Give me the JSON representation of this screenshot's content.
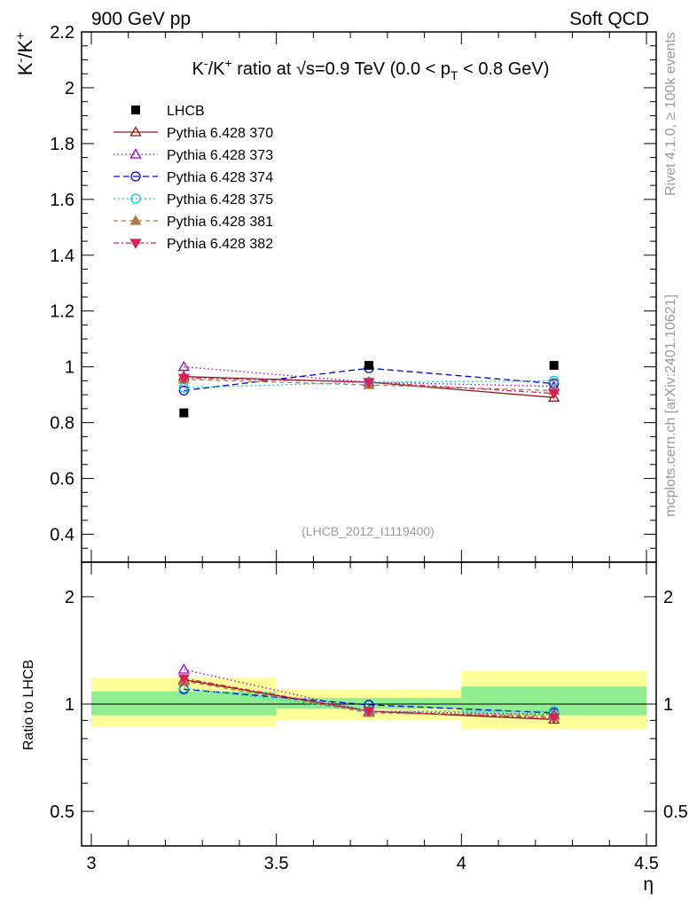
{
  "header": {
    "left": "900 GeV pp",
    "right": "Soft QCD"
  },
  "side_labels": {
    "top": "Rivet 4.1.0, ≥ 100k events",
    "bottom": "mcplots.cern.ch [arXiv:2401.10621]"
  },
  "watermark": "(LHCB_2012_I1119400)",
  "chart_data": {
    "type": "scatter",
    "title": "K⁻/K⁺ ratio at √s=0.9 TeV (0.0 < pT < 0.8 GeV)",
    "title_parts": {
      "a": "K",
      "sup1": "-",
      "b": "/K",
      "sup2": "+",
      "c": " ratio at ",
      "sqrt": "√",
      "d": "s=0.9 TeV (0.0 < p",
      "sub": "T",
      "e": " < 0.8 GeV)"
    },
    "ylabel": {
      "a": "K",
      "sup1": "-",
      "b": "/K",
      "sup2": "+"
    },
    "xlabel": "η",
    "ratio_ylabel": "Ratio to LHCB",
    "xlim": [
      3.0,
      4.5
    ],
    "ylim": [
      0.3,
      2.2
    ],
    "ratio_ylim": [
      0.4,
      2.5
    ],
    "x_ticks": [
      "3",
      "3.5",
      "4",
      "4.5"
    ],
    "y_ticks": [
      "0.4",
      "0.6",
      "0.8",
      "1",
      "1.2",
      "1.4",
      "1.6",
      "1.8",
      "2",
      "2.2"
    ],
    "ratio_ticks": [
      "0.5",
      "1",
      "2"
    ],
    "x_centers": [
      3.25,
      3.75,
      4.25
    ],
    "bins": [
      [
        3.0,
        3.5
      ],
      [
        3.5,
        4.0
      ],
      [
        4.0,
        4.5
      ]
    ],
    "data": {
      "name": "LHCB",
      "values": [
        0.835,
        1.005,
        1.005
      ],
      "band_inner": [
        [
          0.93,
          1.085
        ],
        [
          0.97,
          1.04
        ],
        [
          0.93,
          1.12
        ]
      ],
      "band_outer": [
        [
          0.865,
          1.185
        ],
        [
          0.9,
          1.095
        ],
        [
          0.85,
          1.24
        ]
      ]
    },
    "series": [
      {
        "name": "Pythia 6.428 370",
        "color": "#8b1a1a",
        "dash": "",
        "marker": "triangle-open",
        "values": [
          0.965,
          0.945,
          0.89
        ],
        "ratios": [
          1.17,
          0.955,
          0.905
        ]
      },
      {
        "name": "Pythia 6.428 373",
        "color": "#9400d3",
        "dash": "1.5 3",
        "marker": "triangle-open",
        "values": [
          1.0,
          0.945,
          0.93
        ],
        "ratios": [
          1.25,
          0.955,
          0.935
        ]
      },
      {
        "name": "Pythia 6.428 374",
        "color": "#0000dd",
        "dash": "7 4",
        "marker": "circle-open",
        "values": [
          0.915,
          0.995,
          0.94
        ],
        "ratios": [
          1.1,
          0.995,
          0.945
        ]
      },
      {
        "name": "Pythia 6.428 375",
        "color": "#00cccc",
        "dash": "2 3",
        "marker": "circle-open",
        "values": [
          0.925,
          0.945,
          0.95
        ],
        "ratios": [
          1.11,
          0.955,
          0.955
        ]
      },
      {
        "name": "Pythia 6.428 381",
        "color": "#b07848",
        "dash": "5 4",
        "marker": "triangle-filled",
        "values": [
          0.955,
          0.935,
          0.915
        ],
        "ratios": [
          1.16,
          0.945,
          0.925
        ]
      },
      {
        "name": "Pythia 6.428 382",
        "color": "#dc1e5a",
        "dash": "6 3 2 3",
        "marker": "triangle-down-filled",
        "values": [
          0.96,
          0.945,
          0.905
        ],
        "ratios": [
          1.18,
          0.955,
          0.915
        ]
      }
    ],
    "colors": {
      "band_inner": "#90ee90",
      "band_outer": "#ffff99"
    }
  }
}
